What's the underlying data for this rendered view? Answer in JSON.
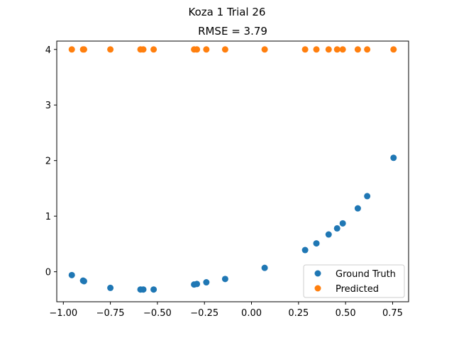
{
  "figure": {
    "suptitle": "Koza 1 Trial 26"
  },
  "chart_data": {
    "type": "scatter",
    "title": "RMSE = 3.79",
    "xlabel": "",
    "ylabel": "",
    "xlim": [
      -1.035,
      0.835
    ],
    "ylim": [
      -0.54,
      4.15
    ],
    "x_ticks": [
      -1.0,
      -0.75,
      -0.5,
      -0.25,
      0.0,
      0.25,
      0.5,
      0.75
    ],
    "x_tick_labels": [
      "−1.00",
      "−0.75",
      "−0.50",
      "−0.25",
      "0.00",
      "0.25",
      "0.50",
      "0.75"
    ],
    "y_ticks": [
      0,
      1,
      2,
      3,
      4
    ],
    "y_tick_labels": [
      "0",
      "1",
      "2",
      "3",
      "4"
    ],
    "grid": false,
    "legend_position": "lower-right",
    "series": [
      {
        "name": "Ground Truth",
        "color": "#1f77b4",
        "points": [
          [
            -0.955,
            -0.06
          ],
          [
            -0.895,
            -0.16
          ],
          [
            -0.89,
            -0.17
          ],
          [
            -0.75,
            -0.29
          ],
          [
            -0.59,
            -0.32
          ],
          [
            -0.575,
            -0.32
          ],
          [
            -0.52,
            -0.32
          ],
          [
            -0.305,
            -0.23
          ],
          [
            -0.29,
            -0.22
          ],
          [
            -0.24,
            -0.19
          ],
          [
            -0.14,
            -0.13
          ],
          [
            0.07,
            0.07
          ],
          [
            0.285,
            0.39
          ],
          [
            0.345,
            0.51
          ],
          [
            0.41,
            0.67
          ],
          [
            0.455,
            0.78
          ],
          [
            0.485,
            0.87
          ],
          [
            0.565,
            1.14
          ],
          [
            0.615,
            1.36
          ],
          [
            0.755,
            2.05
          ]
        ]
      },
      {
        "name": "Predicted",
        "color": "#ff7f0e",
        "points": [
          [
            -0.955,
            4.0
          ],
          [
            -0.895,
            4.0
          ],
          [
            -0.89,
            4.0
          ],
          [
            -0.75,
            4.0
          ],
          [
            -0.59,
            4.0
          ],
          [
            -0.575,
            4.0
          ],
          [
            -0.52,
            4.0
          ],
          [
            -0.305,
            4.0
          ],
          [
            -0.29,
            4.0
          ],
          [
            -0.24,
            4.0
          ],
          [
            -0.14,
            4.0
          ],
          [
            0.07,
            4.0
          ],
          [
            0.285,
            4.0
          ],
          [
            0.345,
            4.0
          ],
          [
            0.41,
            4.0
          ],
          [
            0.455,
            4.0
          ],
          [
            0.485,
            4.0
          ],
          [
            0.565,
            4.0
          ],
          [
            0.615,
            4.0
          ],
          [
            0.755,
            4.0
          ]
        ]
      }
    ]
  }
}
